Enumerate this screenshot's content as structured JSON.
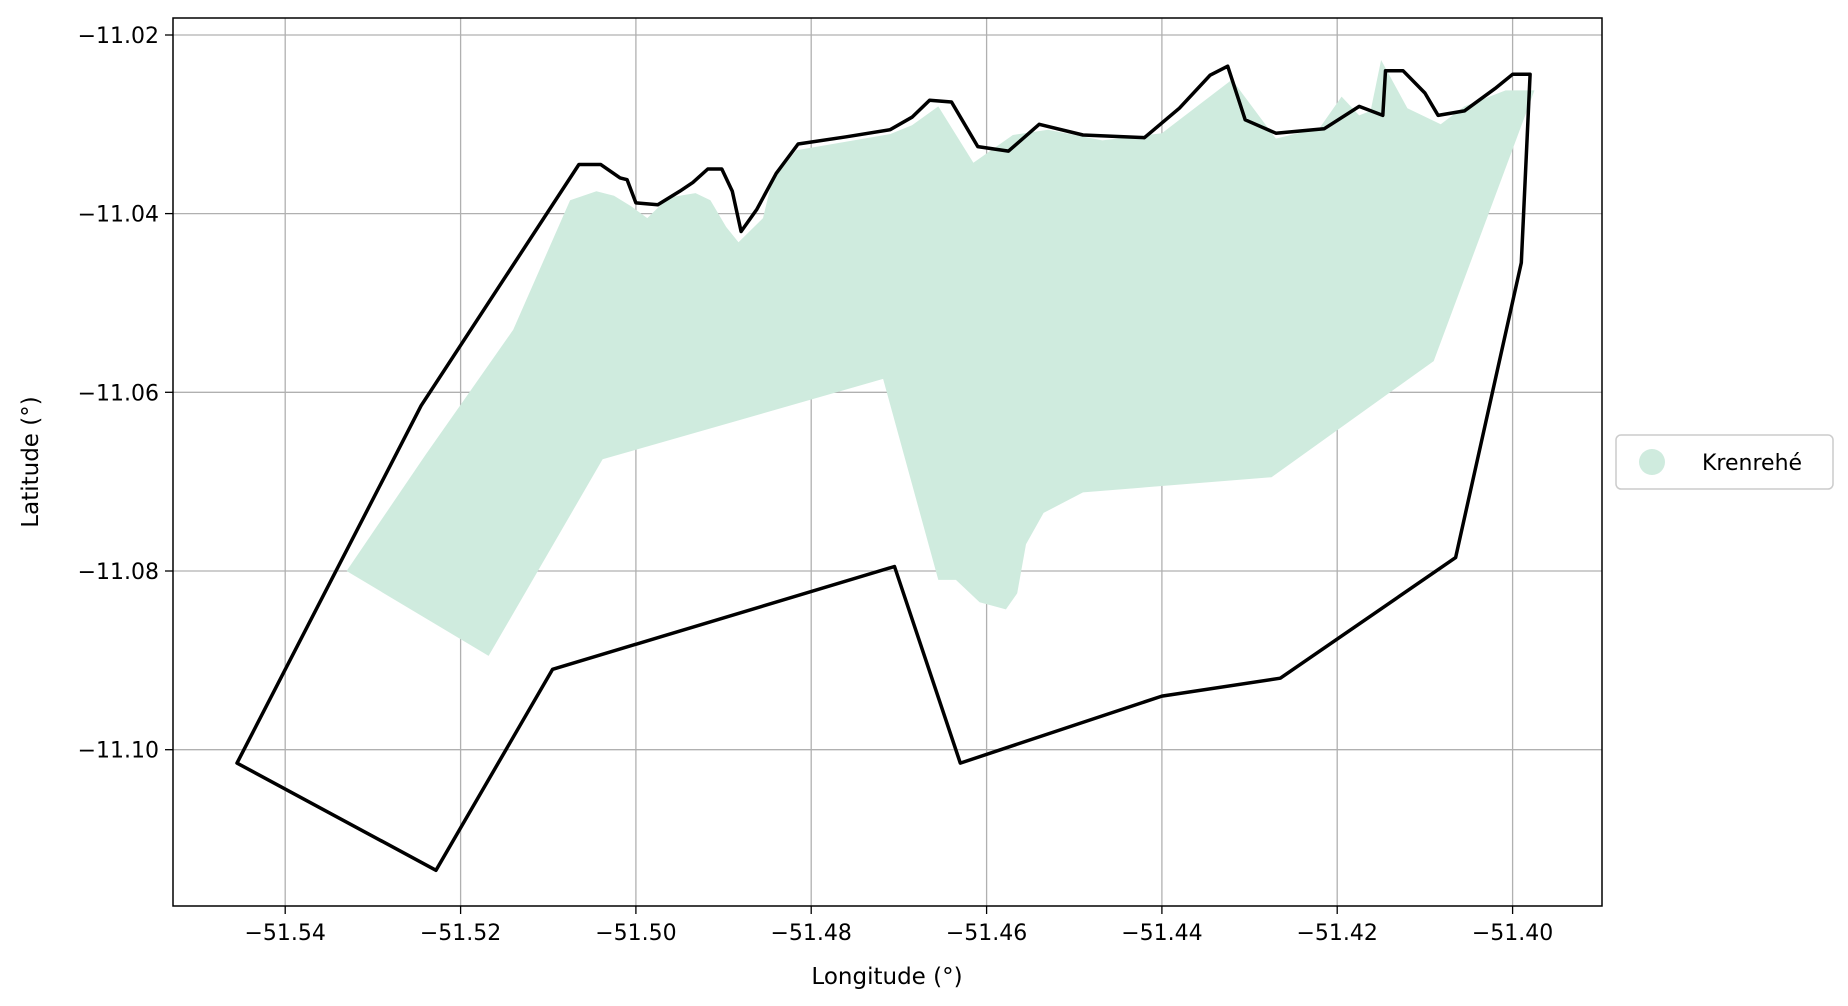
{
  "chart_data": {
    "type": "map",
    "xlabel": "Longitude (°)",
    "ylabel": "Latitude (°)",
    "xlim": [
      -51.5528,
      -51.3898
    ],
    "ylim": [
      -11.1175,
      -11.0181
    ],
    "x_ticks": [
      -51.54,
      -51.52,
      -51.5,
      -51.48,
      -51.46,
      -51.44,
      -51.42,
      -51.4
    ],
    "x_tick_labels": [
      "−51.54",
      "−51.52",
      "−51.50",
      "−51.48",
      "−51.46",
      "−51.44",
      "−51.42",
      "−51.40"
    ],
    "y_ticks": [
      -11.02,
      -11.04,
      -11.06,
      -11.08,
      -11.1
    ],
    "y_tick_labels": [
      "−11.02",
      "−11.04",
      "−11.06",
      "−11.08",
      "−11.10"
    ],
    "grid": true,
    "legend_position": "outside-right",
    "legend": [
      {
        "label": "Krenrehé",
        "color": "#cfebde"
      }
    ],
    "boundary_color": "#000000",
    "area": [
      [
        -51.533,
        -11.08
      ],
      [
        -51.524,
        -11.067
      ],
      [
        -51.514,
        -11.053
      ],
      [
        -51.5075,
        -11.0385
      ],
      [
        -51.5045,
        -11.0375
      ],
      [
        -51.5025,
        -11.038
      ],
      [
        -51.5005,
        -11.0392
      ],
      [
        -51.4987,
        -11.0405
      ],
      [
        -51.4963,
        -11.0382
      ],
      [
        -51.4932,
        -11.0377
      ],
      [
        -51.4915,
        -11.0385
      ],
      [
        -51.4897,
        -11.0415
      ],
      [
        -51.4883,
        -11.0432
      ],
      [
        -51.4855,
        -11.0405
      ],
      [
        -51.4845,
        -11.0364
      ],
      [
        -51.4817,
        -11.0329
      ],
      [
        -51.471,
        -11.0311
      ],
      [
        -51.4685,
        -11.0301
      ],
      [
        -51.4655,
        -11.028
      ],
      [
        -51.4615,
        -11.0343
      ],
      [
        -51.457,
        -11.0312
      ],
      [
        -51.453,
        -11.0306
      ],
      [
        -51.4468,
        -11.0318
      ],
      [
        -51.44,
        -11.031
      ],
      [
        -51.432,
        -11.025
      ],
      [
        -51.427,
        -11.0316
      ],
      [
        -51.422,
        -11.0304
      ],
      [
        -51.4195,
        -11.0269
      ],
      [
        -51.4175,
        -11.029
      ],
      [
        -51.4162,
        -11.0285
      ],
      [
        -51.415,
        -11.0228
      ],
      [
        -51.412,
        -11.0282
      ],
      [
        -51.4082,
        -11.03
      ],
      [
        -51.4055,
        -11.028
      ],
      [
        -51.4008,
        -11.0262
      ],
      [
        -51.3975,
        -11.0262
      ],
      [
        -51.409,
        -11.0565
      ],
      [
        -51.4275,
        -11.0695
      ],
      [
        -51.449,
        -11.0712
      ],
      [
        -51.4535,
        -11.0735
      ],
      [
        -51.4555,
        -11.077
      ],
      [
        -51.4565,
        -11.0825
      ],
      [
        -51.4578,
        -11.0843
      ],
      [
        -51.4608,
        -11.0835
      ],
      [
        -51.4635,
        -11.081
      ],
      [
        -51.4655,
        -11.081
      ],
      [
        -51.4718,
        -11.0585
      ],
      [
        -51.5038,
        -11.0675
      ],
      [
        -51.5168,
        -11.0895
      ]
    ],
    "boundary": [
      [
        -51.5455,
        -11.1015
      ],
      [
        -51.5245,
        -11.0615
      ],
      [
        -51.5065,
        -11.0345
      ],
      [
        -51.504,
        -11.0345
      ],
      [
        -51.5018,
        -11.036
      ],
      [
        -51.501,
        -11.0362
      ],
      [
        -51.5,
        -11.0388
      ],
      [
        -51.4975,
        -11.039
      ],
      [
        -51.495,
        -11.0375
      ],
      [
        -51.4935,
        -11.0365
      ],
      [
        -51.4918,
        -11.035
      ],
      [
        -51.4902,
        -11.035
      ],
      [
        -51.489,
        -11.0375
      ],
      [
        -51.488,
        -11.042
      ],
      [
        -51.4862,
        -11.0395
      ],
      [
        -51.484,
        -11.0355
      ],
      [
        -51.4815,
        -11.0322
      ],
      [
        -51.476,
        -11.0314
      ],
      [
        -51.471,
        -11.0306
      ],
      [
        -51.4685,
        -11.0292
      ],
      [
        -51.4665,
        -11.0273
      ],
      [
        -51.464,
        -11.0275
      ],
      [
        -51.461,
        -11.0325
      ],
      [
        -51.4575,
        -11.033
      ],
      [
        -51.454,
        -11.03
      ],
      [
        -51.449,
        -11.0312
      ],
      [
        -51.442,
        -11.0315
      ],
      [
        -51.438,
        -11.0282
      ],
      [
        -51.4345,
        -11.0245
      ],
      [
        -51.4325,
        -11.0235
      ],
      [
        -51.4305,
        -11.0295
      ],
      [
        -51.427,
        -11.031
      ],
      [
        -51.4215,
        -11.0305
      ],
      [
        -51.4175,
        -11.028
      ],
      [
        -51.4148,
        -11.029
      ],
      [
        -51.4145,
        -11.024
      ],
      [
        -51.4125,
        -11.024
      ],
      [
        -51.41,
        -11.0265
      ],
      [
        -51.4085,
        -11.029
      ],
      [
        -51.4055,
        -11.0285
      ],
      [
        -51.402,
        -11.026
      ],
      [
        -51.4,
        -11.0244
      ],
      [
        -51.398,
        -11.0244
      ],
      [
        -51.399,
        -11.0455
      ],
      [
        -51.4065,
        -11.0785
      ],
      [
        -51.4265,
        -11.092
      ],
      [
        -51.44,
        -11.094
      ],
      [
        -51.463,
        -11.1015
      ],
      [
        -51.4705,
        -11.0795
      ],
      [
        -51.5095,
        -11.091
      ],
      [
        -51.5228,
        -11.1135
      ],
      [
        -51.5455,
        -11.1015
      ]
    ]
  }
}
